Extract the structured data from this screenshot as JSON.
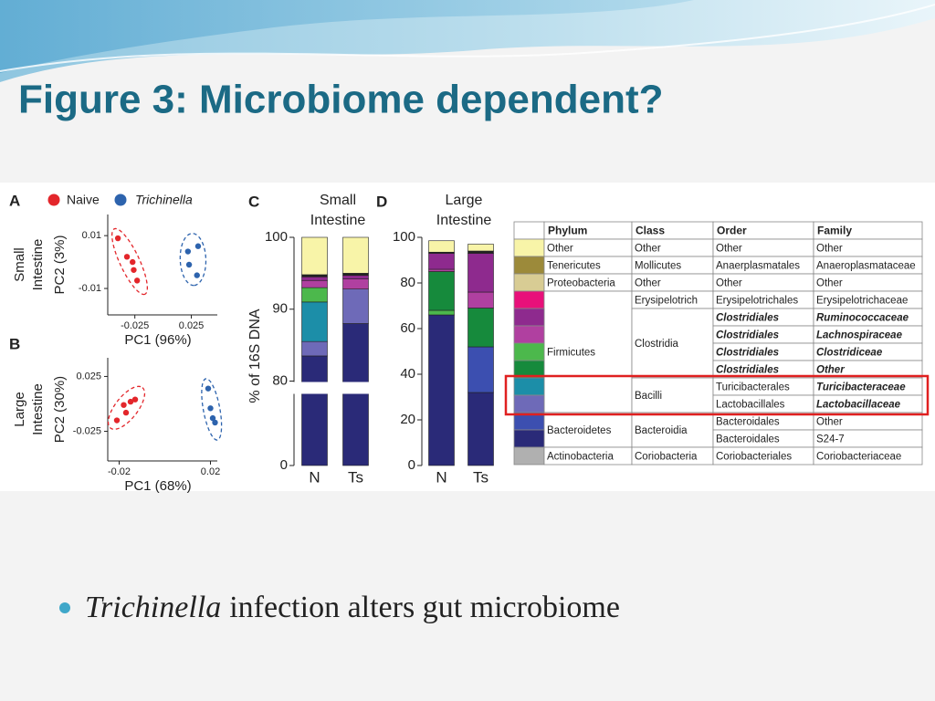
{
  "slide": {
    "title": "Figure 3: Microbiome dependent?",
    "bullet": {
      "emphasis": "Trichinella",
      "rest": "infection alters gut microbiome"
    }
  },
  "figure": {
    "legend": [
      {
        "name": "Naive",
        "color": "#e3262b"
      },
      {
        "name": "Trichinella",
        "color": "#2d63ad"
      }
    ],
    "table": {
      "header": [
        "Phylum",
        "Class",
        "Order",
        "Family"
      ],
      "rows": [
        {
          "color": "#f8f4a8",
          "phylum": "Other",
          "class": "Other",
          "order": "Other",
          "family": "Other"
        },
        {
          "color": "#9c8a3a",
          "phylum": "Tenericutes",
          "class": "Mollicutes",
          "order": "Anaerplasmatales",
          "family": "Anaeroplasmataceae"
        },
        {
          "color": "#d8cc94",
          "phylum": "Proteobacteria",
          "class": "Other",
          "order": "Other",
          "family": "Other"
        },
        {
          "color": "#e8107a",
          "phylum": "Firmicutes",
          "class": "Erysipelotrich",
          "order": "Erysipelotrichales",
          "family": "Erysipelotrichaceae"
        },
        {
          "color": "#8e2a8e",
          "class": "Clostridia",
          "order": "Clostridiales",
          "family": "Ruminococcaceae",
          "bold_italic": [
            "order",
            "family"
          ]
        },
        {
          "color": "#b040a0",
          "order": "Clostridiales",
          "family": "Lachnospiraceae",
          "bold_italic": [
            "order",
            "family"
          ]
        },
        {
          "color": "#4cb84c",
          "order": "Clostridiales",
          "family": "Clostridiceae",
          "bold_italic": [
            "order",
            "family"
          ]
        },
        {
          "color": "#168a3c",
          "order": "Clostridiales",
          "family": "Other",
          "bold_italic": [
            "order",
            "family"
          ]
        },
        {
          "color": "#1c8ea8",
          "class": "Bacilli",
          "order": "Turicibacterales",
          "family": "Turicibacteraceae",
          "bold_italic": [
            "family"
          ],
          "highlighted": true
        },
        {
          "color": "#6e6ab8",
          "order": "Lactobacillales",
          "family": "Lactobacillaceae",
          "bold_italic": [
            "family"
          ],
          "highlighted": true
        },
        {
          "color": "#3c4fb0",
          "phylum": "Bacteroidetes",
          "class": "Bacteroidia",
          "order": "Bacteroidales",
          "family": "Other"
        },
        {
          "color": "#2a2a78",
          "order": "Bacteroidales",
          "family": "S24-7"
        },
        {
          "color": "#b0b0b0",
          "phylum": "Actinobacteria",
          "class": "Coriobacteria",
          "order": "Coriobacteriales",
          "family": "Coriobacteriaceae"
        }
      ]
    }
  },
  "chart_data": [
    {
      "type": "scatter",
      "panel": "A",
      "group_label": [
        "Small",
        "Intestine"
      ],
      "xlabel": "PC1 (96%)",
      "ylabel": "PC2 (3%)",
      "xlim": [
        -0.049,
        0.048
      ],
      "ylim": [
        -0.02,
        0.018
      ],
      "xticks": [
        -0.025,
        0.025
      ],
      "yticks": [
        0.01,
        -0.01
      ],
      "series": [
        {
          "color": "#e3262b",
          "x": [
            -0.04,
            -0.032,
            -0.027,
            -0.026,
            -0.023
          ],
          "values": [
            0.009,
            0.002,
            0,
            -0.003,
            -0.007
          ]
        },
        {
          "color": "#2d63ad",
          "x": [
            0.022,
            0.031,
            0.023,
            0.03
          ],
          "values": [
            0.004,
            0.006,
            -0.001,
            -0.005
          ]
        }
      ]
    },
    {
      "type": "scatter",
      "panel": "B",
      "group_label": [
        "Large",
        "Intestine"
      ],
      "xlabel": "PC1 (68%)",
      "ylabel": "PC2 (30%)",
      "xlim": [
        -0.025,
        0.023
      ],
      "ylim": [
        -0.052,
        0.042
      ],
      "xticks": [
        -0.02,
        0.02
      ],
      "yticks": [
        0.025,
        -0.025
      ],
      "series": [
        {
          "color": "#e3262b",
          "x": [
            -0.021,
            -0.018,
            -0.015,
            -0.017,
            -0.013
          ],
          "values": [
            -0.015,
            -0.001,
            0.002,
            -0.008,
            0.004
          ]
        },
        {
          "color": "#2d63ad",
          "x": [
            0.019,
            0.021,
            0.022,
            0.02
          ],
          "values": [
            0.014,
            -0.013,
            -0.017,
            -0.004
          ]
        }
      ]
    },
    {
      "type": "bar",
      "stacked": true,
      "panel": "C",
      "title": [
        "Small",
        "Intestine"
      ],
      "ylabel": "% of 16S DNA",
      "axis_break": 80,
      "categories": [
        "N",
        "Ts"
      ],
      "ylim": [
        0,
        100
      ],
      "yticks": [
        0,
        80,
        90,
        100
      ],
      "series": [
        {
          "color": "#2a2a78",
          "values": [
            83.5,
            88
          ]
        },
        {
          "color": "#3c4fb0",
          "values": [
            0,
            0
          ]
        },
        {
          "color": "#6e6ab8",
          "values": [
            2,
            4.8
          ]
        },
        {
          "color": "#1c8ea8",
          "values": [
            5.5,
            0
          ]
        },
        {
          "color": "#4cb84c",
          "values": [
            2,
            0
          ]
        },
        {
          "color": "#168a3c",
          "values": [
            0,
            0
          ]
        },
        {
          "color": "#b040a0",
          "values": [
            1,
            1.4
          ]
        },
        {
          "color": "#8e2a8e",
          "values": [
            0.5,
            0.5
          ]
        },
        {
          "color": "#222222",
          "values": [
            0.3,
            0.3
          ]
        },
        {
          "color": "#f8f4a8",
          "values": [
            5.2,
            5
          ]
        }
      ]
    },
    {
      "type": "bar",
      "stacked": true,
      "panel": "D",
      "title": [
        "Large",
        "Intestine"
      ],
      "categories": [
        "N",
        "Ts"
      ],
      "ylim": [
        0,
        100
      ],
      "yticks": [
        0,
        20,
        40,
        60,
        80,
        100
      ],
      "series": [
        {
          "color": "#2a2a78",
          "values": [
            66,
            32
          ]
        },
        {
          "color": "#3c4fb0",
          "values": [
            0,
            20
          ]
        },
        {
          "color": "#6e6ab8",
          "values": [
            0,
            0
          ]
        },
        {
          "color": "#1c8ea8",
          "values": [
            0,
            0
          ]
        },
        {
          "color": "#4cb84c",
          "values": [
            2,
            0
          ]
        },
        {
          "color": "#168a3c",
          "values": [
            17,
            17
          ]
        },
        {
          "color": "#b040a0",
          "values": [
            1,
            7
          ]
        },
        {
          "color": "#8e2a8e",
          "values": [
            7,
            17
          ]
        },
        {
          "color": "#222222",
          "values": [
            0.5,
            1
          ]
        },
        {
          "color": "#f8f4a8",
          "values": [
            5,
            3
          ]
        }
      ]
    }
  ]
}
